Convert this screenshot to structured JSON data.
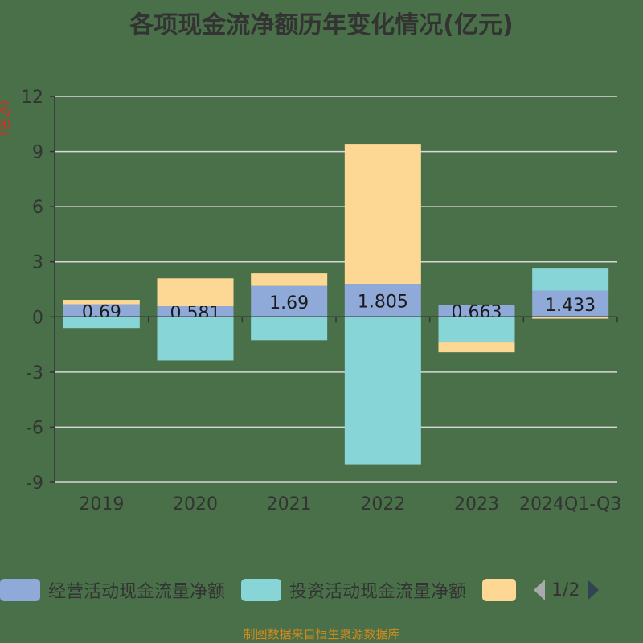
{
  "chart_data": {
    "type": "bar",
    "stacked": true,
    "title": "各项现金流净额历年变化情况(亿元)",
    "ylabel": "(亿元)",
    "xlabel": "",
    "categories": [
      "2019",
      "2020",
      "2021",
      "2022",
      "2023",
      "2024Q1-Q3"
    ],
    "ylim": [
      -9,
      12
    ],
    "yticks": [
      12,
      9,
      6,
      3,
      0,
      -3,
      -6,
      -9
    ],
    "grid": true,
    "legend_position": "bottom",
    "legend_page": "1/2",
    "series": [
      {
        "name": "经营活动现金流量净额",
        "color": "#8fa9d9",
        "values": [
          0.69,
          0.581,
          1.69,
          1.805,
          0.663,
          1.433
        ],
        "labels": [
          "0.69",
          "0.581",
          "1.69",
          "1.805",
          "0.663",
          "1.433"
        ]
      },
      {
        "name": "投资活动现金流量净额",
        "color": "#88d5d7",
        "values": [
          -0.61,
          -2.37,
          -1.27,
          -8.02,
          -1.39,
          1.2
        ]
      },
      {
        "name": "",
        "color": "#fdd895",
        "values": [
          0.24,
          1.52,
          0.68,
          7.61,
          -0.53,
          -0.1
        ]
      }
    ]
  },
  "footer": "制图数据来自恒生聚源数据库"
}
